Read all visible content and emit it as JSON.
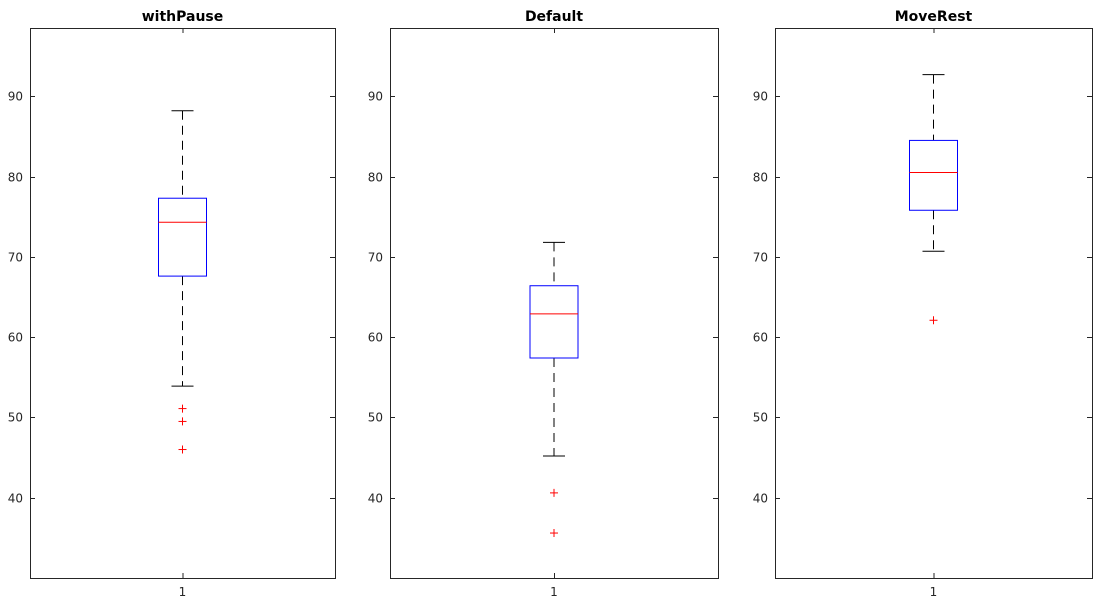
{
  "chart_data": [
    {
      "type": "box",
      "title": "withPause",
      "categories": [
        "1"
      ],
      "ylim": [
        30,
        98.5
      ],
      "yticks": [
        40,
        50,
        60,
        70,
        80,
        90
      ],
      "grid": false,
      "box": {
        "lower_whisker": 53.9,
        "q1": 67.6,
        "median": 74.3,
        "q3": 77.3,
        "upper_whisker": 88.2
      },
      "outliers": [
        51.1,
        49.5,
        46.0
      ]
    },
    {
      "type": "box",
      "title": "Default",
      "categories": [
        "1"
      ],
      "ylim": [
        30,
        98.5
      ],
      "yticks": [
        40,
        50,
        60,
        70,
        80,
        90
      ],
      "grid": false,
      "box": {
        "lower_whisker": 45.2,
        "q1": 57.4,
        "median": 62.9,
        "q3": 66.4,
        "upper_whisker": 71.8
      },
      "outliers": [
        40.6,
        35.6
      ]
    },
    {
      "type": "box",
      "title": "MoveRest",
      "categories": [
        "1"
      ],
      "ylim": [
        30,
        98.5
      ],
      "yticks": [
        40,
        50,
        60,
        70,
        80,
        90
      ],
      "grid": false,
      "box": {
        "lower_whisker": 70.7,
        "q1": 75.8,
        "median": 80.5,
        "q3": 84.5,
        "upper_whisker": 92.7
      },
      "outliers": [
        62.1
      ]
    }
  ],
  "colors": {
    "box": "#0000ff",
    "median": "#ff0000",
    "outlier": "#ff0000",
    "whisker": "#000000",
    "axes": "#262626"
  }
}
